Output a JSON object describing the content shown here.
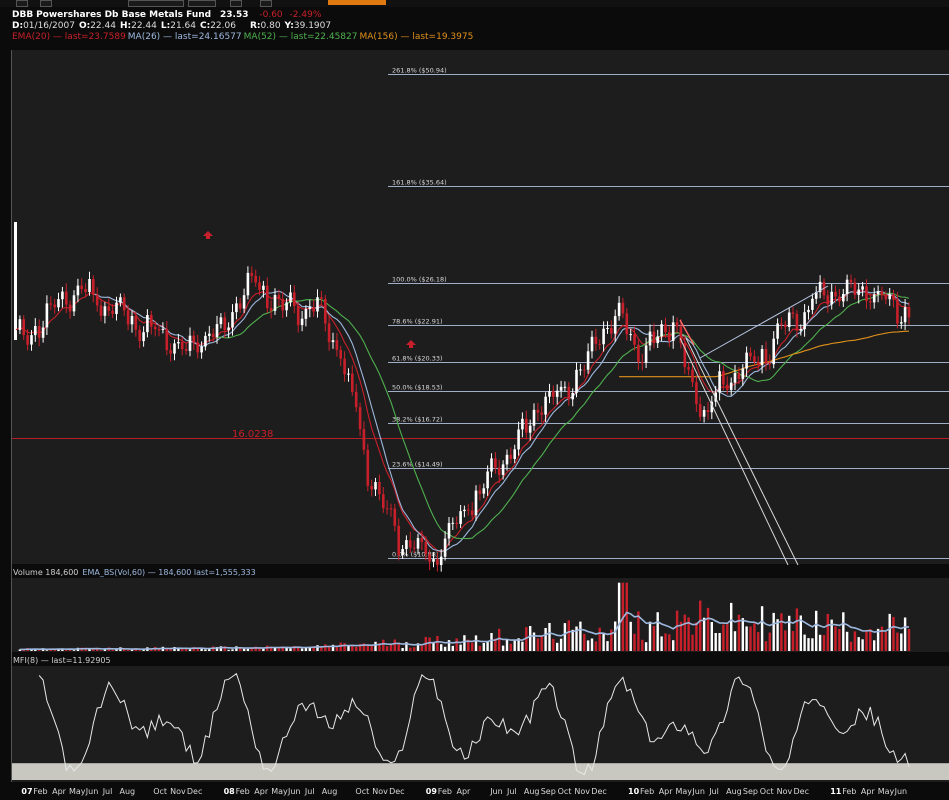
{
  "header": {
    "symbol": "DBB",
    "name": "Powershares Db Base Metals Fund",
    "price": "23.53",
    "change": "-0.60",
    "change_pct": "-2.49%",
    "ohlc": [
      {
        "label": "D:",
        "value": "01/16/2007"
      },
      {
        "label": "O:",
        "value": "22.44"
      },
      {
        "label": "H:",
        "value": "22.44"
      },
      {
        "label": "L:",
        "value": "21.64"
      },
      {
        "label": "C:",
        "value": "22.06"
      },
      {
        "label": "R:",
        "value": "0.80"
      },
      {
        "label": "Y:",
        "value": "39.1907"
      }
    ],
    "indicators": [
      {
        "text": "EMA(20) — last=23.7589",
        "color": "#c8202a"
      },
      {
        "text": "MA(26) — last=24.16577",
        "color": "#9db8de"
      },
      {
        "text": "MA(52) — last=22.45827",
        "color": "#4fb04f"
      },
      {
        "text": "MA(156) — last=19.3975",
        "color": "#e0901a"
      }
    ]
  },
  "colors": {
    "background": "#0b0b0b",
    "panel": "#1e1d1d",
    "fib_line": "#b7c8e6",
    "up_candle": "#ffffff",
    "down_candle": "#c8202a",
    "ema20": "#c8202a",
    "ma26": "#9db8de",
    "ma52": "#4fb04f",
    "ma156": "#e0901a",
    "mfi": "#e8e8e8",
    "mfi_band": "#c9c8c0",
    "volume_ema": "#9db8de"
  },
  "chart_data": [
    {
      "type": "candlestick",
      "title": "DBB Powershares Db Base Metals Fund",
      "ylim": [
        8.5,
        52.0
      ],
      "y_scale": "log",
      "price_level_label": "16.0238",
      "fib_levels": [
        {
          "pct": "261.8%",
          "price": 50.94,
          "label": "261.8%  ($50.94)"
        },
        {
          "pct": "161.8%",
          "price": 35.64,
          "label": "161.8%  ($35.64)"
        },
        {
          "pct": "100.0%",
          "price": 26.18,
          "label": "100.0%  ($26.18)"
        },
        {
          "pct": "78.6%",
          "price": 22.91,
          "label": "78.6%  ($22.91)"
        },
        {
          "pct": "61.8%",
          "price": 20.33,
          "label": "61.8%  ($20.33)"
        },
        {
          "pct": "50.0%",
          "price": 18.53,
          "label": "50.0%  ($18.53)"
        },
        {
          "pct": "38.2%",
          "price": 16.72,
          "label": "38.2%  ($16.72)"
        },
        {
          "pct": "23.6%",
          "price": 14.49,
          "label": "23.6%  ($14.49)"
        },
        {
          "pct": "0.0%",
          "price": 10.88,
          "label": "0.0%  ($10.88)"
        }
      ],
      "price_anchors": [
        {
          "date": "2007-01",
          "close": 22.0
        },
        {
          "date": "2007-05",
          "close": 25.5
        },
        {
          "date": "2007-07",
          "close": 23.9
        },
        {
          "date": "2007-09",
          "close": 22.5
        },
        {
          "date": "2007-11",
          "close": 21.0
        },
        {
          "date": "2008-01",
          "close": 22.5
        },
        {
          "date": "2008-03",
          "close": 26.0
        },
        {
          "date": "2008-05",
          "close": 24.3
        },
        {
          "date": "2008-07",
          "close": 24.0
        },
        {
          "date": "2008-08",
          "close": 21.5
        },
        {
          "date": "2008-09",
          "close": 18.0
        },
        {
          "date": "2008-10",
          "close": 14.0
        },
        {
          "date": "2008-11",
          "close": 12.5
        },
        {
          "date": "2008-12",
          "close": 11.4
        },
        {
          "date": "2009-02",
          "close": 11.0
        },
        {
          "date": "2009-04",
          "close": 13.0
        },
        {
          "date": "2009-06",
          "close": 15.0
        },
        {
          "date": "2009-08",
          "close": 17.5
        },
        {
          "date": "2009-10",
          "close": 19.0
        },
        {
          "date": "2009-12",
          "close": 22.5
        },
        {
          "date": "2010-01",
          "close": 23.5
        },
        {
          "date": "2010-02",
          "close": 21.0
        },
        {
          "date": "2010-04",
          "close": 23.0
        },
        {
          "date": "2010-05",
          "close": 19.0
        },
        {
          "date": "2010-06",
          "close": 17.5
        },
        {
          "date": "2010-07",
          "close": 19.0
        },
        {
          "date": "2010-09",
          "close": 20.5
        },
        {
          "date": "2010-11",
          "close": 23.0
        },
        {
          "date": "2011-01",
          "close": 25.5
        },
        {
          "date": "2011-03",
          "close": 25.5
        },
        {
          "date": "2011-05",
          "close": 24.5
        },
        {
          "date": "2011-06",
          "close": 23.53
        }
      ],
      "ma156_last": 19.3975
    },
    {
      "type": "bar",
      "title": "Volume 184,600",
      "indicator_label": "EMA_BS(Vol,60) — 184,600 last=1,555,333",
      "volume_anchors": [
        {
          "date": "2007-01",
          "volume": 120000
        },
        {
          "date": "2008-06",
          "volume": 250000
        },
        {
          "date": "2009-02",
          "volume": 700000
        },
        {
          "date": "2009-12",
          "volume": 1500000
        },
        {
          "date": "2010-05",
          "volume": 2200000
        },
        {
          "date": "2011-06",
          "volume": 1600000
        }
      ]
    },
    {
      "type": "line",
      "title": "MFI(8) — last=11.92905",
      "series": [
        {
          "name": "MFI(8)",
          "last": 11.92905
        }
      ],
      "ylim": [
        0,
        100
      ]
    }
  ],
  "x_axis": {
    "ticks": [
      {
        "label": "07",
        "suffix": "Feb",
        "date": "2007-01"
      },
      {
        "label": "Apr",
        "date": "2007-03"
      },
      {
        "label": "May",
        "date": "2007-04"
      },
      {
        "label": "Jun",
        "date": "2007-05"
      },
      {
        "label": "Jul",
        "date": "2007-06"
      },
      {
        "label": "Aug",
        "date": "2007-07"
      },
      {
        "label": "Oct",
        "date": "2007-09"
      },
      {
        "label": "Nov",
        "date": "2007-10"
      },
      {
        "label": "Dec",
        "date": "2007-11"
      },
      {
        "label": "08",
        "suffix": "Feb",
        "date": "2008-01"
      },
      {
        "label": "Apr",
        "date": "2008-03"
      },
      {
        "label": "May",
        "date": "2008-04"
      },
      {
        "label": "Jun",
        "date": "2008-05"
      },
      {
        "label": "Jul",
        "date": "2008-06"
      },
      {
        "label": "Aug",
        "date": "2008-07"
      },
      {
        "label": "Oct",
        "date": "2008-09"
      },
      {
        "label": "Nov",
        "date": "2008-10"
      },
      {
        "label": "Dec",
        "date": "2008-11"
      },
      {
        "label": "09",
        "suffix": "Feb",
        "date": "2009-01"
      },
      {
        "label": "Apr",
        "date": "2009-03"
      },
      {
        "label": "Jun",
        "date": "2009-05"
      },
      {
        "label": "Jul",
        "date": "2009-06"
      },
      {
        "label": "Aug",
        "date": "2009-07"
      },
      {
        "label": "Sep",
        "date": "2009-08"
      },
      {
        "label": "Oct",
        "date": "2009-09"
      },
      {
        "label": "Nov",
        "date": "2009-10"
      },
      {
        "label": "Dec",
        "date": "2009-11"
      },
      {
        "label": "10",
        "suffix": "Feb",
        "date": "2010-01"
      },
      {
        "label": "Apr",
        "date": "2010-03"
      },
      {
        "label": "May",
        "date": "2010-04"
      },
      {
        "label": "Jun",
        "date": "2010-05"
      },
      {
        "label": "Jul",
        "date": "2010-06"
      },
      {
        "label": "Aug",
        "date": "2010-07"
      },
      {
        "label": "Sep",
        "date": "2010-08"
      },
      {
        "label": "Oct",
        "date": "2010-09"
      },
      {
        "label": "Nov",
        "date": "2010-10"
      },
      {
        "label": "Dec",
        "date": "2010-11"
      },
      {
        "label": "11",
        "suffix": "Feb",
        "date": "2011-01"
      },
      {
        "label": "Apr",
        "date": "2011-03"
      },
      {
        "label": "May",
        "date": "2011-04"
      },
      {
        "label": "Jun",
        "date": "2011-05"
      }
    ]
  }
}
